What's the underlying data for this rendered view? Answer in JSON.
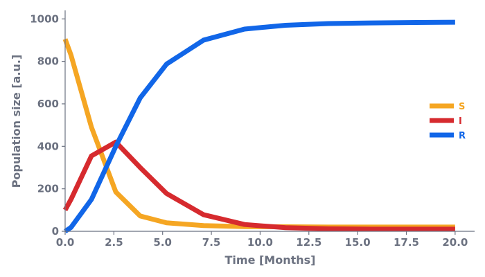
{
  "chart_data": {
    "type": "line",
    "title": "",
    "xlabel": "Time [Months]",
    "ylabel": "Population size [a.u.]",
    "xlim": [
      0,
      21
    ],
    "ylim": [
      0,
      1040
    ],
    "xticks": [
      0,
      2.5,
      5,
      7.5,
      10,
      12.5,
      15,
      17.5,
      20
    ],
    "xtick_labels": [
      "0.0",
      "2.5",
      "5.0",
      "7.5",
      "10.0",
      "12.5",
      "15.0",
      "17.5",
      "20.0"
    ],
    "yticks": [
      0,
      200,
      400,
      600,
      800,
      1000
    ],
    "ytick_labels": [
      "0",
      "200",
      "400",
      "600",
      "800",
      "1000"
    ],
    "grid": false,
    "legend_position": "center-right",
    "x": [
      0,
      0.3,
      1.35,
      2.6,
      3.85,
      5.2,
      7.1,
      9.2,
      11.3,
      13.5,
      15.7,
      18.0,
      20.0
    ],
    "series": [
      {
        "name": "S",
        "color": "#f5a623",
        "values": [
          905,
          830,
          490,
          185,
          72,
          40,
          27,
          22,
          21,
          20,
          20,
          20,
          20
        ]
      },
      {
        "name": "I",
        "color": "#d62a2e",
        "values": [
          100,
          150,
          355,
          420,
          300,
          178,
          78,
          32,
          17,
          12,
          10,
          10,
          10
        ]
      },
      {
        "name": "R",
        "color": "#1166e8",
        "values": [
          0,
          18,
          150,
          400,
          628,
          787,
          900,
          952,
          970,
          978,
          981,
          983,
          984
        ]
      }
    ]
  }
}
